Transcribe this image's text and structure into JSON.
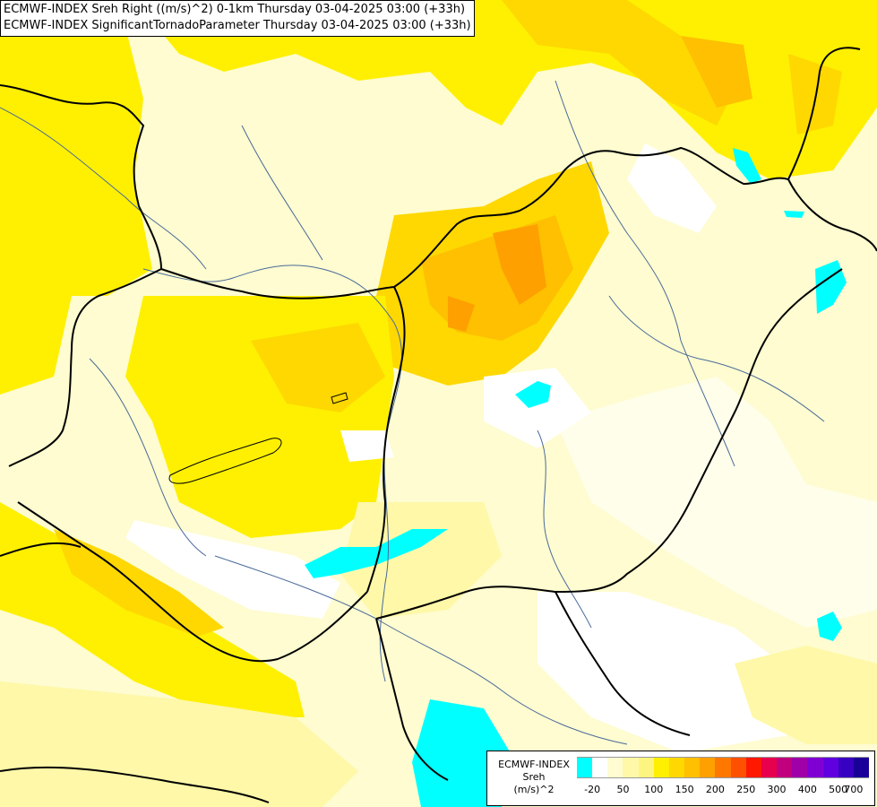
{
  "header": {
    "line1": "ECMWF-INDEX Sreh Right ((m/s)^2) 0-1km Thursday 03-04-2025 03:00 (+33h)",
    "line2": "ECMWF-INDEX SignificantTornadoParameter Thursday 03-04-2025 03:00 (+33h)"
  },
  "legend": {
    "title_model": "ECMWF-INDEX",
    "title_var": "Sreh",
    "title_unit": "(m/s)^2",
    "colors": [
      "#00ffff",
      "#ffffff",
      "#fefcd0",
      "#fef8a8",
      "#fef480",
      "#fef000",
      "#fed800",
      "#fec000",
      "#fea000",
      "#fe7800",
      "#fe5000",
      "#fe1800",
      "#e8004c",
      "#c0007c",
      "#a000a8",
      "#8000d4",
      "#6000e0",
      "#3800c0",
      "#180098"
    ],
    "ticks": [
      "-20",
      "50",
      "100",
      "150",
      "200",
      "250",
      "300",
      "400",
      "500",
      "700"
    ]
  }
}
